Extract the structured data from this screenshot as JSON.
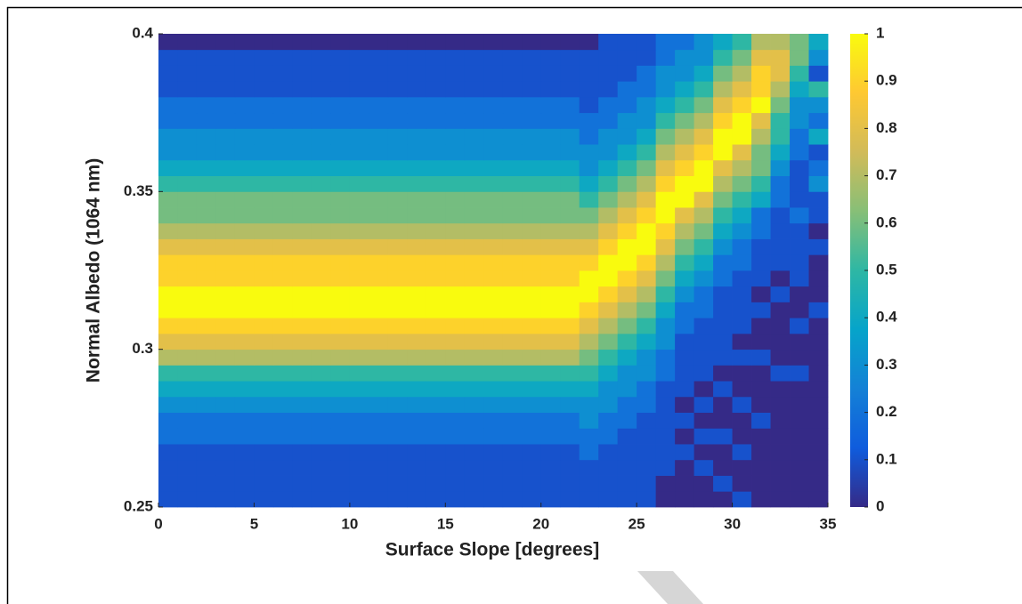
{
  "chart_data": {
    "type": "heatmap",
    "xlabel": "Surface Slope [degrees]",
    "ylabel": "Normal Albedo (1064 nm)",
    "xlim": [
      0,
      35
    ],
    "ylim": [
      0.25,
      0.4
    ],
    "xticks": [
      0,
      5,
      10,
      15,
      20,
      25,
      30,
      35
    ],
    "yticks": [
      0.25,
      0.3,
      0.35,
      0.4
    ],
    "clim": [
      0,
      1
    ],
    "cticks": [
      0,
      0.1,
      0.2,
      0.3,
      0.4,
      0.5,
      0.6,
      0.7,
      0.8,
      0.9,
      1
    ],
    "colormap": [
      "#352a87",
      "#0f5cdd",
      "#1481d6",
      "#06a4ca",
      "#2eb7a4",
      "#87bf77",
      "#d1bb59",
      "#fec832",
      "#f9fb0e"
    ],
    "xbins": [
      0,
      1,
      2,
      3,
      4,
      5,
      6,
      7,
      8,
      9,
      10,
      11,
      12,
      13,
      14,
      15,
      16,
      17,
      18,
      19,
      20,
      21,
      22,
      23,
      24,
      25,
      26,
      27,
      28,
      29,
      30,
      31,
      32,
      33,
      34,
      35
    ],
    "ybins": [
      0.25,
      0.255,
      0.26,
      0.265,
      0.27,
      0.275,
      0.28,
      0.285,
      0.29,
      0.295,
      0.3,
      0.305,
      0.31,
      0.315,
      0.32,
      0.325,
      0.33,
      0.335,
      0.34,
      0.345,
      0.35,
      0.355,
      0.36,
      0.365,
      0.37,
      0.375,
      0.38,
      0.385,
      0.39,
      0.395,
      0.4
    ],
    "z": [
      [
        0.1,
        0.1,
        0.1,
        0.1,
        0.1,
        0.1,
        0.1,
        0.1,
        0.1,
        0.1,
        0.1,
        0.1,
        0.1,
        0.1,
        0.1,
        0.1,
        0.1,
        0.1,
        0.1,
        0.1,
        0.1,
        0.1,
        0.1,
        0.1,
        0.1,
        0.1,
        0,
        0,
        0,
        0,
        0.1,
        0,
        0,
        0,
        0
      ],
      [
        0.1,
        0.1,
        0.1,
        0.1,
        0.1,
        0.1,
        0.1,
        0.1,
        0.1,
        0.1,
        0.1,
        0.1,
        0.1,
        0.1,
        0.1,
        0.1,
        0.1,
        0.1,
        0.1,
        0.1,
        0.1,
        0.1,
        0.1,
        0.1,
        0.1,
        0.1,
        0,
        0,
        0,
        0.1,
        0,
        0,
        0,
        0,
        0
      ],
      [
        0.1,
        0.1,
        0.1,
        0.1,
        0.1,
        0.1,
        0.1,
        0.1,
        0.1,
        0.1,
        0.1,
        0.1,
        0.1,
        0.1,
        0.1,
        0.1,
        0.1,
        0.1,
        0.1,
        0.1,
        0.1,
        0.1,
        0.1,
        0.1,
        0.1,
        0.1,
        0.1,
        0,
        0.1,
        0,
        0,
        0,
        0,
        0,
        0
      ],
      [
        0.1,
        0.1,
        0.1,
        0.1,
        0.1,
        0.1,
        0.1,
        0.1,
        0.1,
        0.1,
        0.1,
        0.1,
        0.1,
        0.1,
        0.1,
        0.1,
        0.1,
        0.1,
        0.1,
        0.1,
        0.1,
        0.1,
        0.2,
        0.1,
        0.1,
        0.1,
        0.1,
        0.1,
        0,
        0,
        0.1,
        0,
        0,
        0,
        0
      ],
      [
        0.2,
        0.2,
        0.2,
        0.2,
        0.2,
        0.2,
        0.2,
        0.2,
        0.2,
        0.2,
        0.2,
        0.2,
        0.2,
        0.2,
        0.2,
        0.2,
        0.2,
        0.2,
        0.2,
        0.2,
        0.2,
        0.2,
        0.2,
        0.2,
        0.1,
        0.1,
        0.1,
        0,
        0.1,
        0.1,
        0,
        0,
        0,
        0,
        0
      ],
      [
        0.2,
        0.2,
        0.2,
        0.2,
        0.2,
        0.2,
        0.2,
        0.2,
        0.2,
        0.2,
        0.2,
        0.2,
        0.2,
        0.2,
        0.2,
        0.2,
        0.2,
        0.2,
        0.2,
        0.2,
        0.2,
        0.2,
        0.3,
        0.2,
        0.2,
        0.1,
        0.1,
        0.1,
        0,
        0,
        0,
        0.1,
        0,
        0,
        0
      ],
      [
        0.3,
        0.3,
        0.3,
        0.3,
        0.3,
        0.3,
        0.3,
        0.3,
        0.3,
        0.3,
        0.3,
        0.3,
        0.3,
        0.3,
        0.3,
        0.3,
        0.3,
        0.3,
        0.3,
        0.3,
        0.3,
        0.3,
        0.3,
        0.3,
        0.2,
        0.2,
        0.1,
        0,
        0.1,
        0,
        0.1,
        0,
        0,
        0,
        0
      ],
      [
        0.4,
        0.4,
        0.4,
        0.4,
        0.4,
        0.4,
        0.4,
        0.4,
        0.4,
        0.4,
        0.4,
        0.4,
        0.4,
        0.4,
        0.4,
        0.4,
        0.4,
        0.4,
        0.4,
        0.4,
        0.4,
        0.4,
        0.4,
        0.3,
        0.3,
        0.2,
        0.1,
        0.1,
        0,
        0.1,
        0,
        0,
        0,
        0,
        0
      ],
      [
        0.5,
        0.5,
        0.5,
        0.5,
        0.5,
        0.5,
        0.5,
        0.5,
        0.5,
        0.5,
        0.5,
        0.5,
        0.5,
        0.5,
        0.5,
        0.5,
        0.5,
        0.5,
        0.5,
        0.5,
        0.5,
        0.5,
        0.5,
        0.4,
        0.3,
        0.3,
        0.2,
        0.1,
        0.1,
        0,
        0,
        0,
        0.1,
        0.1,
        0
      ],
      [
        0.7,
        0.7,
        0.7,
        0.7,
        0.7,
        0.7,
        0.7,
        0.7,
        0.7,
        0.7,
        0.7,
        0.7,
        0.7,
        0.7,
        0.7,
        0.7,
        0.7,
        0.7,
        0.7,
        0.7,
        0.7,
        0.7,
        0.6,
        0.5,
        0.4,
        0.3,
        0.2,
        0.1,
        0.1,
        0.1,
        0.1,
        0.1,
        0,
        0,
        0
      ],
      [
        0.8,
        0.8,
        0.8,
        0.8,
        0.8,
        0.8,
        0.8,
        0.8,
        0.8,
        0.8,
        0.8,
        0.8,
        0.8,
        0.8,
        0.8,
        0.8,
        0.8,
        0.8,
        0.8,
        0.8,
        0.8,
        0.8,
        0.7,
        0.6,
        0.5,
        0.4,
        0.3,
        0.1,
        0.1,
        0.1,
        0,
        0,
        0,
        0,
        0
      ],
      [
        0.9,
        0.9,
        0.9,
        0.9,
        0.9,
        0.9,
        0.9,
        0.9,
        0.9,
        0.9,
        0.9,
        0.9,
        0.9,
        0.9,
        0.9,
        0.9,
        0.9,
        0.9,
        0.9,
        0.9,
        0.9,
        0.9,
        0.8,
        0.7,
        0.6,
        0.5,
        0.3,
        0.2,
        0.1,
        0.1,
        0.1,
        0,
        0,
        0.1,
        0
      ],
      [
        1,
        1,
        1,
        1,
        1,
        1,
        1,
        1,
        1,
        1,
        1,
        1,
        1,
        1,
        1,
        1,
        1,
        1,
        1,
        1,
        1,
        1,
        0.9,
        0.8,
        0.7,
        0.6,
        0.4,
        0.2,
        0.2,
        0.1,
        0.1,
        0.1,
        0,
        0,
        0.1
      ],
      [
        1,
        1,
        1,
        1,
        1,
        1,
        1,
        1,
        1,
        1,
        1,
        1,
        1,
        1,
        1,
        1,
        1,
        1,
        1,
        1,
        1,
        1,
        1,
        0.9,
        0.8,
        0.7,
        0.5,
        0.3,
        0.2,
        0.1,
        0.1,
        0,
        0.1,
        0,
        0
      ],
      [
        0.9,
        0.9,
        0.9,
        0.9,
        0.9,
        0.9,
        0.9,
        0.9,
        0.9,
        0.9,
        0.9,
        0.9,
        0.9,
        0.9,
        0.9,
        0.9,
        0.9,
        0.9,
        0.9,
        0.9,
        0.9,
        0.9,
        1,
        1,
        0.9,
        0.8,
        0.6,
        0.4,
        0.3,
        0.2,
        0.1,
        0.1,
        0,
        0.1,
        0
      ],
      [
        0.9,
        0.9,
        0.9,
        0.9,
        0.9,
        0.9,
        0.9,
        0.9,
        0.9,
        0.9,
        0.9,
        0.9,
        0.9,
        0.9,
        0.9,
        0.9,
        0.9,
        0.9,
        0.9,
        0.9,
        0.9,
        0.9,
        0.9,
        1,
        1,
        0.9,
        0.7,
        0.5,
        0.4,
        0.2,
        0.2,
        0.1,
        0.1,
        0.1,
        0
      ],
      [
        0.8,
        0.8,
        0.8,
        0.8,
        0.8,
        0.8,
        0.8,
        0.8,
        0.8,
        0.8,
        0.8,
        0.8,
        0.8,
        0.8,
        0.8,
        0.8,
        0.8,
        0.8,
        0.8,
        0.8,
        0.8,
        0.8,
        0.8,
        0.9,
        1,
        1,
        0.8,
        0.6,
        0.5,
        0.3,
        0.2,
        0.1,
        0.1,
        0.1,
        0.1
      ],
      [
        0.7,
        0.7,
        0.7,
        0.7,
        0.7,
        0.7,
        0.7,
        0.7,
        0.7,
        0.7,
        0.7,
        0.7,
        0.7,
        0.7,
        0.7,
        0.7,
        0.7,
        0.7,
        0.7,
        0.7,
        0.7,
        0.7,
        0.7,
        0.8,
        0.9,
        1,
        0.9,
        0.7,
        0.6,
        0.4,
        0.3,
        0.2,
        0.1,
        0.1,
        0
      ],
      [
        0.6,
        0.6,
        0.6,
        0.6,
        0.6,
        0.6,
        0.6,
        0.6,
        0.6,
        0.6,
        0.6,
        0.6,
        0.6,
        0.6,
        0.6,
        0.6,
        0.6,
        0.6,
        0.6,
        0.6,
        0.6,
        0.6,
        0.6,
        0.7,
        0.8,
        0.9,
        1,
        0.8,
        0.7,
        0.5,
        0.4,
        0.2,
        0.1,
        0.2,
        0.1
      ],
      [
        0.6,
        0.6,
        0.6,
        0.6,
        0.6,
        0.6,
        0.6,
        0.6,
        0.6,
        0.6,
        0.6,
        0.6,
        0.6,
        0.6,
        0.6,
        0.6,
        0.6,
        0.6,
        0.6,
        0.6,
        0.6,
        0.6,
        0.5,
        0.6,
        0.7,
        0.8,
        1,
        1,
        0.8,
        0.6,
        0.5,
        0.4,
        0.2,
        0.1,
        0.1
      ],
      [
        0.5,
        0.5,
        0.5,
        0.5,
        0.5,
        0.5,
        0.5,
        0.5,
        0.5,
        0.5,
        0.5,
        0.5,
        0.5,
        0.5,
        0.5,
        0.5,
        0.5,
        0.5,
        0.5,
        0.5,
        0.5,
        0.5,
        0.4,
        0.5,
        0.6,
        0.7,
        0.9,
        1,
        1,
        0.7,
        0.6,
        0.5,
        0.2,
        0.1,
        0.3
      ],
      [
        0.4,
        0.4,
        0.4,
        0.4,
        0.4,
        0.4,
        0.4,
        0.4,
        0.4,
        0.4,
        0.4,
        0.4,
        0.4,
        0.4,
        0.4,
        0.4,
        0.4,
        0.4,
        0.4,
        0.4,
        0.4,
        0.4,
        0.3,
        0.4,
        0.5,
        0.6,
        0.8,
        0.9,
        1,
        0.8,
        0.7,
        0.6,
        0.3,
        0.1,
        0.2
      ],
      [
        0.3,
        0.3,
        0.3,
        0.3,
        0.3,
        0.3,
        0.3,
        0.3,
        0.3,
        0.3,
        0.3,
        0.3,
        0.3,
        0.3,
        0.3,
        0.3,
        0.3,
        0.3,
        0.3,
        0.3,
        0.3,
        0.3,
        0.3,
        0.3,
        0.4,
        0.5,
        0.7,
        0.8,
        0.9,
        1,
        0.8,
        0.6,
        0.4,
        0.2,
        0.1
      ],
      [
        0.3,
        0.3,
        0.3,
        0.3,
        0.3,
        0.3,
        0.3,
        0.3,
        0.3,
        0.3,
        0.3,
        0.3,
        0.3,
        0.3,
        0.3,
        0.3,
        0.3,
        0.3,
        0.3,
        0.3,
        0.3,
        0.3,
        0.2,
        0.3,
        0.3,
        0.4,
        0.6,
        0.7,
        0.8,
        1,
        1,
        0.7,
        0.5,
        0.2,
        0.4
      ],
      [
        0.2,
        0.2,
        0.2,
        0.2,
        0.2,
        0.2,
        0.2,
        0.2,
        0.2,
        0.2,
        0.2,
        0.2,
        0.2,
        0.2,
        0.2,
        0.2,
        0.2,
        0.2,
        0.2,
        0.2,
        0.2,
        0.2,
        0.2,
        0.2,
        0.3,
        0.3,
        0.5,
        0.6,
        0.7,
        0.9,
        1,
        0.8,
        0.5,
        0.3,
        0.2
      ],
      [
        0.2,
        0.2,
        0.2,
        0.2,
        0.2,
        0.2,
        0.2,
        0.2,
        0.2,
        0.2,
        0.2,
        0.2,
        0.2,
        0.2,
        0.2,
        0.2,
        0.2,
        0.2,
        0.2,
        0.2,
        0.2,
        0.2,
        0.1,
        0.2,
        0.2,
        0.3,
        0.4,
        0.5,
        0.6,
        0.8,
        0.9,
        1,
        0.6,
        0.3,
        0.3
      ],
      [
        0.1,
        0.1,
        0.1,
        0.1,
        0.1,
        0.1,
        0.1,
        0.1,
        0.1,
        0.1,
        0.1,
        0.1,
        0.1,
        0.1,
        0.1,
        0.1,
        0.1,
        0.1,
        0.1,
        0.1,
        0.1,
        0.1,
        0.1,
        0.1,
        0.2,
        0.2,
        0.3,
        0.4,
        0.5,
        0.7,
        0.8,
        0.9,
        0.7,
        0.4,
        0.5
      ],
      [
        0.1,
        0.1,
        0.1,
        0.1,
        0.1,
        0.1,
        0.1,
        0.1,
        0.1,
        0.1,
        0.1,
        0.1,
        0.1,
        0.1,
        0.1,
        0.1,
        0.1,
        0.1,
        0.1,
        0.1,
        0.1,
        0.1,
        0.1,
        0.1,
        0.1,
        0.2,
        0.3,
        0.3,
        0.4,
        0.6,
        0.7,
        0.9,
        0.8,
        0.5,
        0.1
      ],
      [
        0.1,
        0.1,
        0.1,
        0.1,
        0.1,
        0.1,
        0.1,
        0.1,
        0.1,
        0.1,
        0.1,
        0.1,
        0.1,
        0.1,
        0.1,
        0.1,
        0.1,
        0.1,
        0.1,
        0.1,
        0.1,
        0.1,
        0.1,
        0.1,
        0.1,
        0.1,
        0.2,
        0.3,
        0.3,
        0.5,
        0.6,
        0.8,
        0.8,
        0.6,
        0.3
      ],
      [
        0,
        0,
        0,
        0,
        0,
        0,
        0,
        0,
        0,
        0,
        0,
        0,
        0,
        0,
        0,
        0,
        0,
        0,
        0,
        0,
        0,
        0,
        0,
        0.1,
        0.1,
        0.1,
        0.2,
        0.2,
        0.3,
        0.4,
        0.5,
        0.7,
        0.7,
        0.6,
        0.4
      ]
    ]
  }
}
